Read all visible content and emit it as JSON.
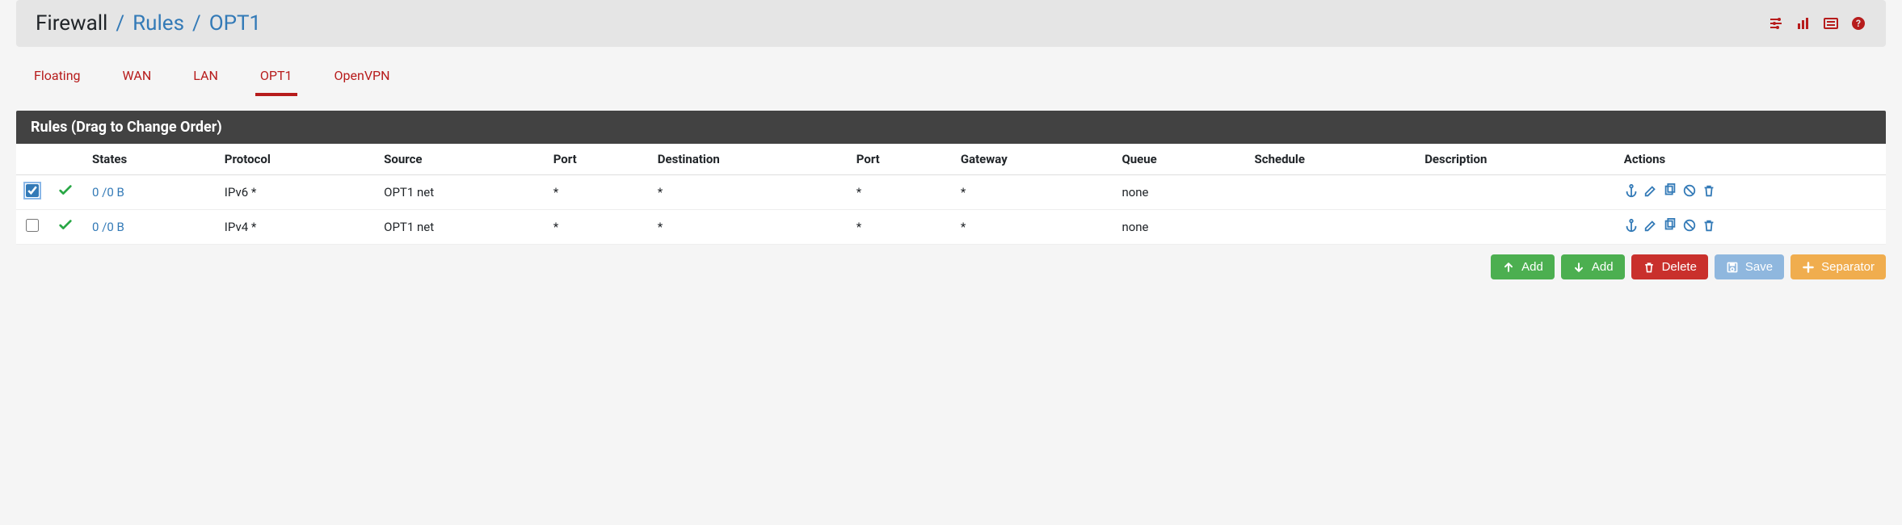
{
  "colors": {
    "accent_link": "#337ab7",
    "danger": "#b71c1c",
    "tab_active_border": "#b71c1c",
    "panel_heading_bg": "#424242",
    "success": "#28a745",
    "btn_green": "#4caf50",
    "btn_red": "#c9302c",
    "btn_blue": "#8fb7de",
    "btn_orange": "#f0ad4e",
    "page_bg": "#f5f5f5",
    "breadcrumb_bg": "#e5e5e5"
  },
  "breadcrumb": {
    "root": "Firewall",
    "section": "Rules",
    "current": "OPT1"
  },
  "header_icons": [
    {
      "name": "settings-sliders-icon"
    },
    {
      "name": "bar-chart-icon"
    },
    {
      "name": "log-icon"
    },
    {
      "name": "help-icon"
    }
  ],
  "tabs": [
    {
      "label": "Floating",
      "active": false
    },
    {
      "label": "WAN",
      "active": false
    },
    {
      "label": "LAN",
      "active": false
    },
    {
      "label": "OPT1",
      "active": true
    },
    {
      "label": "OpenVPN",
      "active": false
    }
  ],
  "panel": {
    "heading": "Rules (Drag to Change Order)"
  },
  "table": {
    "columns": [
      "",
      "",
      "States",
      "Protocol",
      "Source",
      "Port",
      "Destination",
      "Port",
      "Gateway",
      "Queue",
      "Schedule",
      "Description",
      "Actions"
    ],
    "rows": [
      {
        "selected": true,
        "status_icon": "check",
        "states": "0 /0 B",
        "protocol": "IPv6 *",
        "source": "OPT1 net",
        "src_port": "*",
        "destination": "*",
        "dst_port": "*",
        "gateway": "*",
        "queue": "none",
        "schedule": "",
        "description": ""
      },
      {
        "selected": false,
        "status_icon": "check",
        "states": "0 /0 B",
        "protocol": "IPv4 *",
        "source": "OPT1 net",
        "src_port": "*",
        "destination": "*",
        "dst_port": "*",
        "gateway": "*",
        "queue": "none",
        "schedule": "",
        "description": ""
      }
    ],
    "row_actions": [
      {
        "name": "anchor-icon"
      },
      {
        "name": "edit-icon"
      },
      {
        "name": "copy-icon"
      },
      {
        "name": "disable-icon"
      },
      {
        "name": "delete-icon"
      }
    ]
  },
  "footer_buttons": [
    {
      "icon": "arrow-up-icon",
      "label": "Add",
      "style": "green",
      "name": "add-top-button"
    },
    {
      "icon": "arrow-down-icon",
      "label": "Add",
      "style": "green",
      "name": "add-bottom-button"
    },
    {
      "icon": "trash-icon",
      "label": "Delete",
      "style": "red",
      "name": "delete-button"
    },
    {
      "icon": "save-icon",
      "label": "Save",
      "style": "blue",
      "name": "save-button"
    },
    {
      "icon": "plus-icon",
      "label": "Separator",
      "style": "orange",
      "name": "separator-button"
    }
  ]
}
